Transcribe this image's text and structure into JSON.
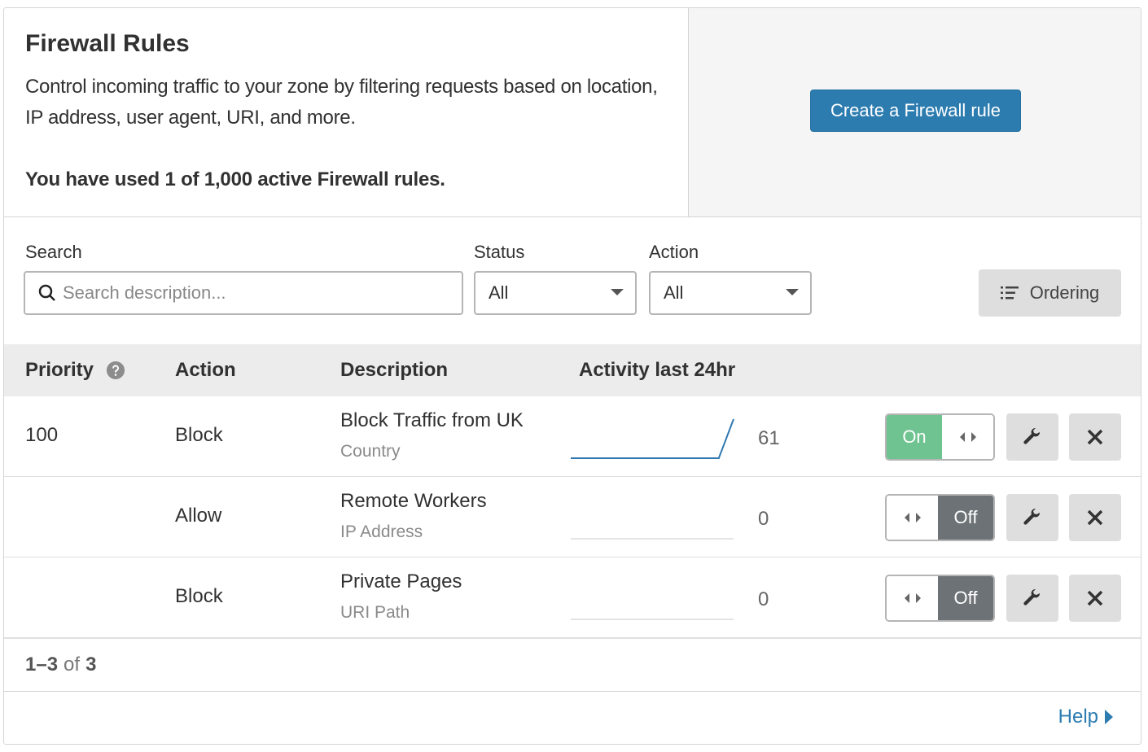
{
  "intro": {
    "title": "Firewall Rules",
    "description": "Control incoming traffic to your zone by filtering requests based on location, IP address, user agent, URI, and more.",
    "usage": "You have used 1 of 1,000 active Firewall rules."
  },
  "create_button": "Create a Firewall rule",
  "filters": {
    "search_label": "Search",
    "search_placeholder": "Search description...",
    "status_label": "Status",
    "status_value": "All",
    "action_label": "Action",
    "action_value": "All",
    "ordering_label": "Ordering"
  },
  "table": {
    "headers": {
      "priority": "Priority",
      "action": "Action",
      "description": "Description",
      "activity": "Activity last 24hr"
    },
    "rows": [
      {
        "priority": "100",
        "action": "Block",
        "description": "Block Traffic from UK",
        "type": "Country",
        "count": "61",
        "enabled": true,
        "toggle_label": "On",
        "activity": [
          0,
          0,
          0,
          0,
          0,
          0,
          0,
          0,
          0,
          0,
          0,
          61
        ]
      },
      {
        "priority": "",
        "action": "Allow",
        "description": "Remote Workers",
        "type": "IP Address",
        "count": "0",
        "enabled": false,
        "toggle_label": "Off",
        "activity": [
          0,
          0,
          0,
          0,
          0,
          0,
          0,
          0,
          0,
          0,
          0,
          0
        ]
      },
      {
        "priority": "",
        "action": "Block",
        "description": "Private Pages",
        "type": "URI Path",
        "count": "0",
        "enabled": false,
        "toggle_label": "Off",
        "activity": [
          0,
          0,
          0,
          0,
          0,
          0,
          0,
          0,
          0,
          0,
          0,
          0
        ]
      }
    ]
  },
  "pager": {
    "range": "1–3",
    "of": "of",
    "total": "3"
  },
  "help_link": "Help",
  "colors": {
    "primary": "#2c7cb0",
    "on": "#6fc390",
    "off": "#6c7276",
    "spark": "#2f78b0"
  }
}
